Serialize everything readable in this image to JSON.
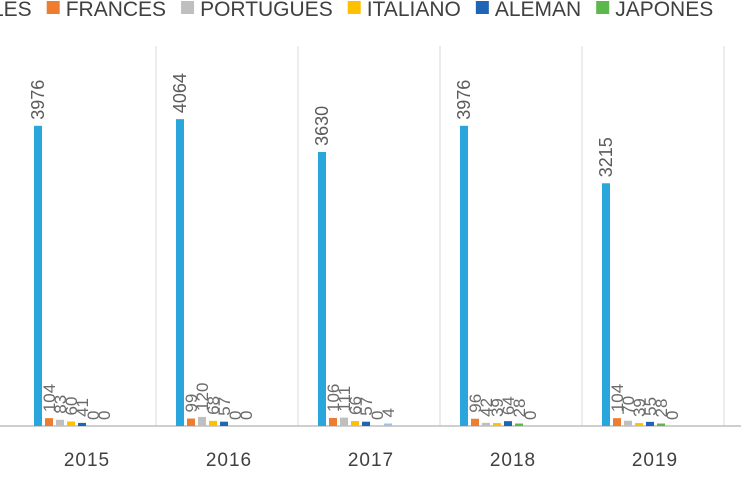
{
  "chart_data": {
    "type": "bar",
    "categories": [
      "2015",
      "2016",
      "2017",
      "2018",
      "2019"
    ],
    "series": [
      {
        "name": "INGLES",
        "color": "#2aa6dc",
        "values": [
          3976,
          4064,
          3630,
          3976,
          3215
        ]
      },
      {
        "name": "FRANCES",
        "color": "#ed7d31",
        "values": [
          104,
          99,
          106,
          96,
          104
        ]
      },
      {
        "name": "PORTUGUES",
        "color": "#bfbfbf",
        "values": [
          83,
          120,
          111,
          42,
          70
        ]
      },
      {
        "name": "ITALIANO",
        "color": "#ffc000",
        "values": [
          60,
          68,
          66,
          39,
          39
        ]
      },
      {
        "name": "ALEMAN",
        "color": "#1f65b5",
        "values": [
          41,
          57,
          57,
          64,
          55
        ]
      },
      {
        "name": "JAPONES",
        "color": "#5cb84a",
        "values": [
          0,
          0,
          0,
          28,
          28
        ]
      },
      {
        "name": "",
        "color": "#9dc3e6",
        "values": [
          0,
          0,
          4,
          0,
          0
        ]
      }
    ],
    "legend_labels": [
      "LES",
      "FRANCES",
      "PORTUGUES",
      "ITALIANO",
      "ALEMAN",
      "JAPONES"
    ],
    "ylim": [
      0,
      5000
    ],
    "grid": "vertical category separators",
    "legend_position": "top",
    "title": "",
    "xlabel": "",
    "ylabel": ""
  }
}
